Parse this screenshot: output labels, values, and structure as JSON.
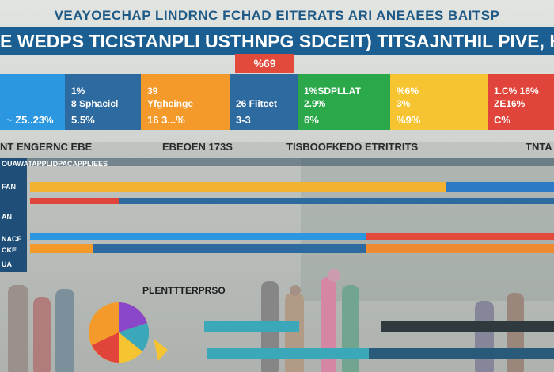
{
  "header": {
    "title": "VEAYOECHAP LINDRNC FCHAD EITERATS ARI ANEAEES BAITSP",
    "banner": "E WEDPS TICISTANPLI USTHNPG SDCEIT) TITSAJNTHIL PIVE, HE VIEEB"
  },
  "pill": {
    "label": "%69"
  },
  "stats": [
    {
      "color": "#2a97e0",
      "line1": "",
      "line2": "",
      "line3": "~ Z5..23%"
    },
    {
      "color": "#2d6aa0",
      "line1": "1%",
      "line2": "8 Sphacicl",
      "line3": "5.5%"
    },
    {
      "color": "#f39a2a",
      "line1": "39",
      "line2": "Yfghcinge",
      "line3": "16 3...%"
    },
    {
      "color": "#2d6aa0",
      "line1": "",
      "line2": "26 Fiitcet",
      "line3": "3-3"
    },
    {
      "color": "#2aa84a",
      "line1": "1%SDPLLAT",
      "line2": "2.9%",
      "line3": "6%"
    },
    {
      "color": "#f7c431",
      "line1": "%6%",
      "line2": "3%",
      "line3": "%9%"
    },
    {
      "color": "#e1443a",
      "line1": "1.C% 16%",
      "line2": "ZE16%",
      "line3": "C%"
    }
  ],
  "labels": [
    "NT ENGERNC EBE",
    "EBEOEN 173S",
    "TISBOOFKEDO ETRITRITS",
    "TNTA"
  ],
  "left_panel": [
    "OUAWATAPPLIDPACAPPLIEES",
    "FAN",
    "AN",
    "NACE",
    "CKE",
    "UA"
  ],
  "lower_title": "PLENTTTERPRSO",
  "colors": {
    "blue": "#2a97e0",
    "navy": "#2d6aa0",
    "orange": "#f39a2a",
    "green": "#2aa84a",
    "yellow": "#f7c431",
    "red": "#e1443a",
    "purple": "#8a47c9",
    "teal": "#3aa8b8"
  }
}
